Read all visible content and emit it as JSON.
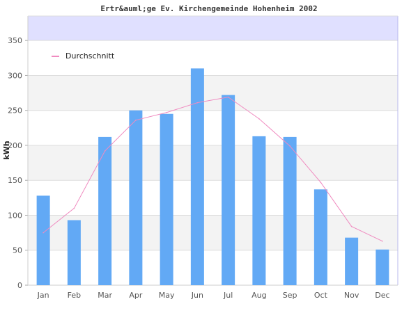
{
  "chart_data": {
    "type": "bar",
    "title": "Ertr&auml;ge Ev. Kirchengemeinde Hohenheim 2002",
    "xlabel": "",
    "ylabel": "kWh",
    "ylim": [
      0,
      385
    ],
    "yticks": [
      0,
      50,
      100,
      150,
      200,
      250,
      300,
      350
    ],
    "categories": [
      "Jan",
      "Feb",
      "Mar",
      "Apr",
      "May",
      "Jun",
      "Jul",
      "Aug",
      "Sep",
      "Oct",
      "Nov",
      "Dec"
    ],
    "series": [
      {
        "type": "bar",
        "color": "#62a9f5",
        "values": [
          128,
          93,
          212,
          250,
          245,
          310,
          272,
          213,
          212,
          137,
          68,
          51
        ]
      },
      {
        "type": "line",
        "name": "Durchschnitt",
        "color": "#f08bc0",
        "values": [
          75,
          110,
          192,
          236,
          247,
          261,
          269,
          238,
          199,
          147,
          84,
          63
        ]
      }
    ],
    "grid": true,
    "legend": "top-left",
    "colors": {
      "band_alt": "#f3f3f3",
      "grid": "#dddddd",
      "top_band": "#e0e0ff"
    }
  }
}
